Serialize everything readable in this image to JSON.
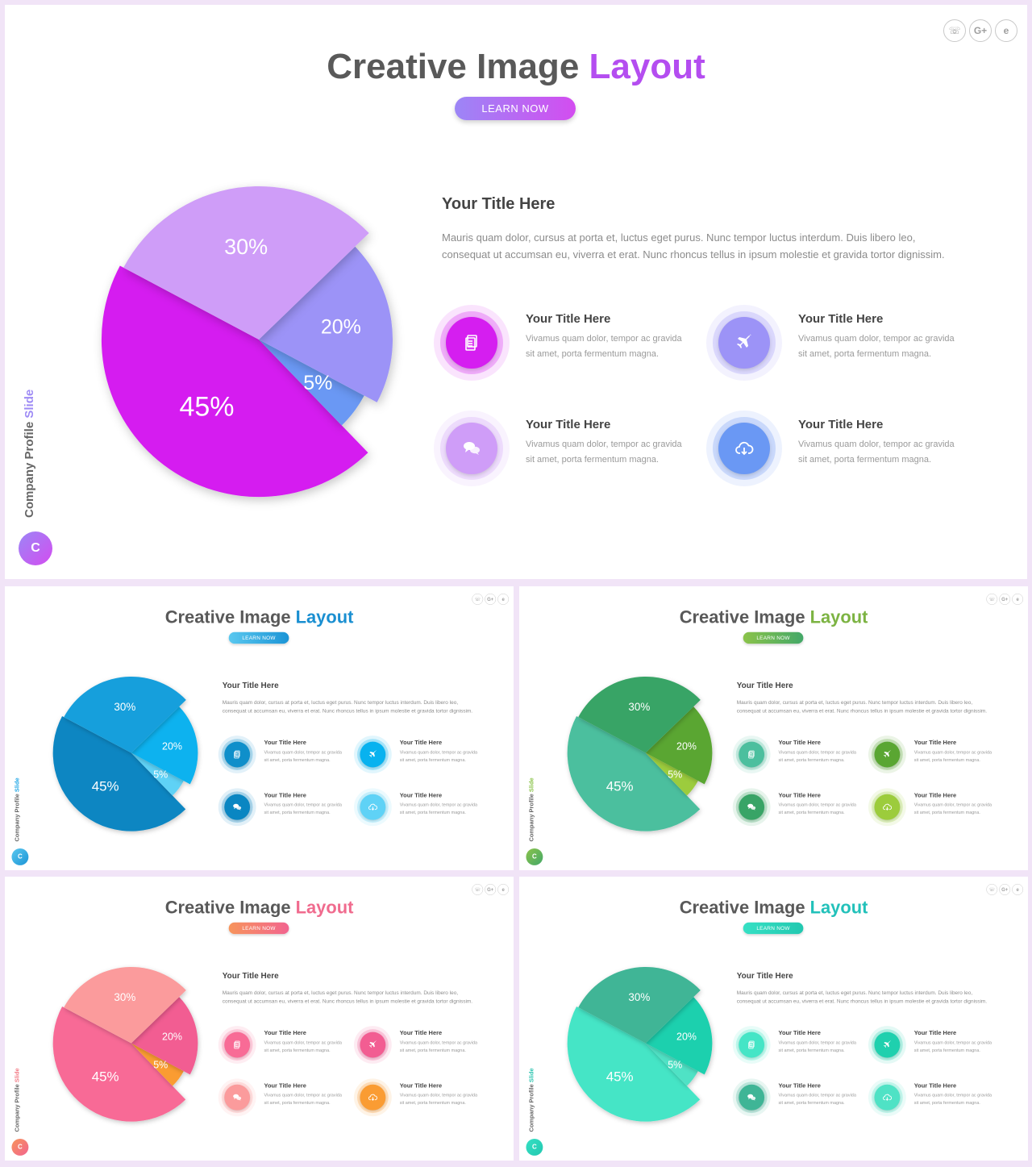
{
  "slides": [
    {
      "title_main": "Creative Image",
      "title_accent": "Layout",
      "learn_label": "LEARN NOW",
      "side_label_main": "Company Profile",
      "side_label_accent": "Slide",
      "logo_letter": "C",
      "heading": "Your Title Here",
      "paragraph": "Mauris quam dolor, cursus at porta et, luctus eget purus. Nunc tempor luctus interdum. Duis libero leo, consequat ut accumsan eu, viverra et erat. Nunc rhoncus tellus in ipsum molestie et gravida tortor dignissim.",
      "features": [
        {
          "title": "Your Title Here",
          "text": "Vivamus quam dolor, tempor ac gravida sit amet, porta fermentum magna.",
          "icon": "document-icon"
        },
        {
          "title": "Your Title Here",
          "text": "Vivamus quam dolor, tempor ac gravida sit amet, porta fermentum magna.",
          "icon": "airplane-icon"
        },
        {
          "title": "Your Title Here",
          "text": "Vivamus quam dolor, tempor ac gravida sit amet, porta fermentum magna.",
          "icon": "chat-icon"
        },
        {
          "title": "Your Title Here",
          "text": "Vivamus quam dolor, tempor ac gravida sit amet, porta fermentum magna.",
          "icon": "cloud-download-icon"
        }
      ],
      "colors": {
        "accent": "#b44df0",
        "accent2": "#9e8bf5",
        "btn1": "#9c86f6",
        "btn2": "#d34df0",
        "slice45": "#d51ef0",
        "slice30": "#cf9df8",
        "slice20": "#9c93f7",
        "slice5": "#6a98f4",
        "icon0": "#d51ef0",
        "icon1": "#9c93f7",
        "icon2": "#cf9df8",
        "icon3": "#6a98f4"
      }
    },
    {
      "title_main": "Creative Image",
      "title_accent": "Layout",
      "learn_label": "LEARN NOW",
      "side_label_main": "Company Profile",
      "side_label_accent": "Slide",
      "logo_letter": "C",
      "heading": "Your Title Here",
      "paragraph": "Mauris quam dolor, cursus at porta et, luctus eget purus. Nunc tempor luctus interdum. Duis libero leo, consequat ut accumsan eu, viverra et erat. Nunc rhoncus tellus in ipsum molestie et gravida tortor dignissim.",
      "features": [
        {
          "title": "Your Title Here",
          "text": "Vivamus quam dolor, tempor ac gravida sit amet, porta fermentum magna.",
          "icon": "document-icon"
        },
        {
          "title": "Your Title Here",
          "text": "Vivamus quam dolor, tempor ac gravida sit amet, porta fermentum magna.",
          "icon": "airplane-icon"
        },
        {
          "title": "Your Title Here",
          "text": "Vivamus quam dolor, tempor ac gravida sit amet, porta fermentum magna.",
          "icon": "chat-icon"
        },
        {
          "title": "Your Title Here",
          "text": "Vivamus quam dolor, tempor ac gravida sit amet, porta fermentum magna.",
          "icon": "cloud-download-icon"
        }
      ],
      "colors": {
        "accent": "#1a8fd1",
        "accent2": "#21a7e6",
        "btn1": "#5ac8ef",
        "btn2": "#1b94d6",
        "slice45": "#0a86c2",
        "slice30": "#179fdc",
        "slice20": "#08b2ef",
        "slice5": "#5fd2f6",
        "icon0": "#0f8fca",
        "icon1": "#08b2ef",
        "icon2": "#0a86c2",
        "icon3": "#5fd2f6"
      }
    },
    {
      "title_main": "Creative Image",
      "title_accent": "Layout",
      "learn_label": "LEARN NOW",
      "side_label_main": "Company Profile",
      "side_label_accent": "Slide",
      "logo_letter": "C",
      "heading": "Your Title Here",
      "paragraph": "Mauris quam dolor, cursus at porta et, luctus eget purus. Nunc tempor luctus interdum. Duis libero leo, consequat ut accumsan eu, viverra et erat. Nunc rhoncus tellus in ipsum molestie et gravida tortor dignissim.",
      "features": [
        {
          "title": "Your Title Here",
          "text": "Vivamus quam dolor, tempor ac gravida sit amet, porta fermentum magna.",
          "icon": "document-icon"
        },
        {
          "title": "Your Title Here",
          "text": "Vivamus quam dolor, tempor ac gravida sit amet, porta fermentum magna.",
          "icon": "airplane-icon"
        },
        {
          "title": "Your Title Here",
          "text": "Vivamus quam dolor, tempor ac gravida sit amet, porta fermentum magna.",
          "icon": "chat-icon"
        },
        {
          "title": "Your Title Here",
          "text": "Vivamus quam dolor, tempor ac gravida sit amet, porta fermentum magna.",
          "icon": "cloud-download-icon"
        }
      ],
      "colors": {
        "accent": "#7cb342",
        "accent2": "#8bc34a",
        "btn1": "#8bc34a",
        "btn2": "#43a868",
        "slice45": "#4cbf9e",
        "slice30": "#38a466",
        "slice20": "#5aa632",
        "slice5": "#9ccc3c",
        "icon0": "#4cbf9e",
        "icon1": "#5aa632",
        "icon2": "#38a466",
        "icon3": "#9ccc3c"
      }
    },
    {
      "title_main": "Creative Image",
      "title_accent": "Layout",
      "learn_label": "LEARN NOW",
      "side_label_main": "Company Profile",
      "side_label_accent": "Slide",
      "logo_letter": "C",
      "heading": "Your Title Here",
      "paragraph": "Mauris quam dolor, cursus at porta et, luctus eget purus. Nunc tempor luctus interdum. Duis libero leo, consequat ut accumsan eu, viverra et erat. Nunc rhoncus tellus in ipsum molestie et gravida tortor dignissim.",
      "features": [
        {
          "title": "Your Title Here",
          "text": "Vivamus quam dolor, tempor ac gravida sit amet, porta fermentum magna.",
          "icon": "document-icon"
        },
        {
          "title": "Your Title Here",
          "text": "Vivamus quam dolor, tempor ac gravida sit amet, porta fermentum magna.",
          "icon": "airplane-icon"
        },
        {
          "title": "Your Title Here",
          "text": "Vivamus quam dolor, tempor ac gravida sit amet, porta fermentum magna.",
          "icon": "chat-icon"
        },
        {
          "title": "Your Title Here",
          "text": "Vivamus quam dolor, tempor ac gravida sit amet, porta fermentum magna.",
          "icon": "cloud-download-icon"
        }
      ],
      "colors": {
        "accent": "#f06b8e",
        "accent2": "#f27a85",
        "btn1": "#f7945b",
        "btn2": "#f2648f",
        "slice45": "#f86b96",
        "slice30": "#fb9b9c",
        "slice20": "#f25d92",
        "slice5": "#fa9c33",
        "icon0": "#f86b96",
        "icon1": "#f25d92",
        "icon2": "#fb9b9c",
        "icon3": "#fa9c33"
      }
    },
    {
      "title_main": "Creative Image",
      "title_accent": "Layout",
      "learn_label": "LEARN NOW",
      "side_label_main": "Company Profile",
      "side_label_accent": "Slide",
      "logo_letter": "C",
      "heading": "Your Title Here",
      "paragraph": "Mauris quam dolor, cursus at porta et, luctus eget purus. Nunc tempor luctus interdum. Duis libero leo, consequat ut accumsan eu, viverra et erat. Nunc rhoncus tellus in ipsum molestie et gravida tortor dignissim.",
      "features": [
        {
          "title": "Your Title Here",
          "text": "Vivamus quam dolor, tempor ac gravida sit amet, porta fermentum magna.",
          "icon": "document-icon"
        },
        {
          "title": "Your Title Here",
          "text": "Vivamus quam dolor, tempor ac gravida sit amet, porta fermentum magna.",
          "icon": "airplane-icon"
        },
        {
          "title": "Your Title Here",
          "text": "Vivamus quam dolor, tempor ac gravida sit amet, porta fermentum magna.",
          "icon": "chat-icon"
        },
        {
          "title": "Your Title Here",
          "text": "Vivamus quam dolor, tempor ac gravida sit amet, porta fermentum magna.",
          "icon": "cloud-download-icon"
        }
      ],
      "colors": {
        "accent": "#22c1ba",
        "accent2": "#2dc4b0",
        "btn1": "#36e0c4",
        "btn2": "#22c8b0",
        "slice45": "#45e5c6",
        "slice30": "#3fb596",
        "slice20": "#1fd0ae",
        "slice5": "#4fe2c5",
        "icon0": "#45e5c6",
        "icon1": "#1fd0ae",
        "icon2": "#3fb596",
        "icon3": "#4fe2c5"
      }
    }
  ],
  "chart_data": {
    "type": "pie",
    "categories": [
      "45%",
      "30%",
      "20%",
      "5%"
    ],
    "values": [
      45,
      30,
      20,
      5
    ]
  },
  "social_icons": [
    "whatsapp-icon",
    "google-plus-icon",
    "internet-explorer-icon"
  ]
}
